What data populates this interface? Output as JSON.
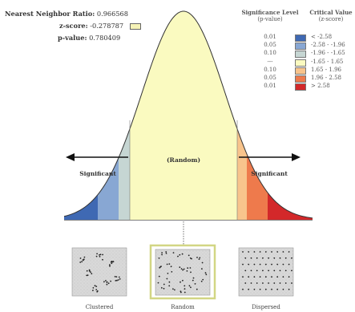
{
  "stats": {
    "nn_ratio_label": "Nearest Neighbor Ratio:",
    "nn_ratio_value": "0.966568",
    "zscore_label": "z-score:",
    "zscore_value": "-0.278787",
    "pvalue_label": "p-value:",
    "pvalue_value": "0.780409"
  },
  "legend": {
    "sig_header_1": "Significance Level",
    "sig_header_2": "(p-value)",
    "crit_header_1": "Critical Value",
    "crit_header_2": "(z-score)",
    "rows": [
      {
        "p": "0.01",
        "z": "< -2.58",
        "color": "#3f69b3"
      },
      {
        "p": "0.05",
        "z": "-2.58 - -1.96",
        "color": "#88a7d3"
      },
      {
        "p": "0.10",
        "z": "-1.96 - -1.65",
        "color": "#c6d6d3"
      },
      {
        "p": "---",
        "z": "-1.65 - 1.65",
        "color": "#fafac0"
      },
      {
        "p": "0.10",
        "z": "1.65 - 1.96",
        "color": "#f8c48c"
      },
      {
        "p": "0.05",
        "z": "1.96 - 2.58",
        "color": "#ee7a4c"
      },
      {
        "p": "0.01",
        "z": "> 2.58",
        "color": "#d3282a"
      }
    ]
  },
  "curve": {
    "random_label": "(Random)",
    "significant_left": "Significant",
    "significant_right": "Significant"
  },
  "patterns": [
    {
      "caption": "Clustered"
    },
    {
      "caption": "Random"
    },
    {
      "caption": "Dispersed"
    }
  ]
}
